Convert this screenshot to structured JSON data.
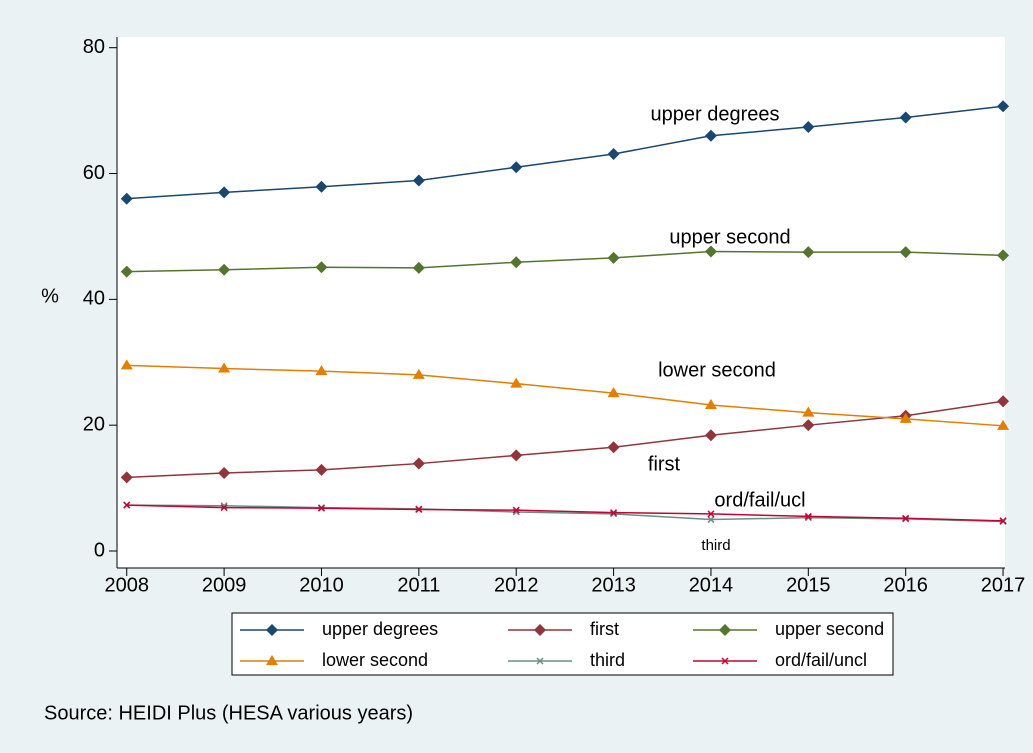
{
  "chart_data": {
    "type": "line",
    "ylabel": "%",
    "x": [
      2008,
      2009,
      2010,
      2011,
      2012,
      2013,
      2014,
      2015,
      2016,
      2017
    ],
    "xlim": [
      2007.9,
      2017.02
    ],
    "xticks": [
      2008,
      2009,
      2010,
      2011,
      2012,
      2013,
      2014,
      2015,
      2016,
      2017
    ],
    "ylim": [
      -2.7,
      81.7
    ],
    "yticks": [
      0,
      20,
      40,
      60,
      80
    ],
    "series": [
      {
        "name": "upper degrees",
        "color": "#1a476f",
        "symbol": "diamond",
        "values": [
          56,
          57,
          57.9,
          58.9,
          61,
          63.1,
          66,
          67.4,
          68.9,
          70.7
        ]
      },
      {
        "name": "first",
        "color": "#90353b",
        "symbol": "diamond",
        "values": [
          11.7,
          12.4,
          12.9,
          13.9,
          15.2,
          16.5,
          18.4,
          20,
          21.5,
          23.8
        ]
      },
      {
        "name": "upper second",
        "color": "#55752f",
        "symbol": "diamond",
        "values": [
          44.4,
          44.7,
          45.1,
          45,
          45.9,
          46.6,
          47.6,
          47.5,
          47.5,
          47
        ]
      },
      {
        "name": "lower second",
        "color": "#e37e00",
        "symbol": "triangle",
        "values": [
          29.5,
          29,
          28.6,
          28,
          26.6,
          25.1,
          23.2,
          22,
          21,
          19.9
        ]
      },
      {
        "name": "third",
        "color": "#6e8e84",
        "symbol": "x",
        "values": [
          7.3,
          7.2,
          6.9,
          6.7,
          6.2,
          5.9,
          5,
          5.3,
          5.1,
          4.7
        ]
      },
      {
        "name": "ord/fail/uncl",
        "color": "#c10534",
        "symbol": "x",
        "values": [
          7.3,
          6.9,
          6.8,
          6.6,
          6.5,
          6.1,
          5.9,
          5.5,
          5.2,
          4.8
        ]
      }
    ],
    "annotations": [
      "upper degrees",
      "upper second",
      "lower second",
      "first",
      "ord/fail/ucl",
      "third"
    ],
    "source": "Source: HEIDI Plus (HESA various years)"
  }
}
